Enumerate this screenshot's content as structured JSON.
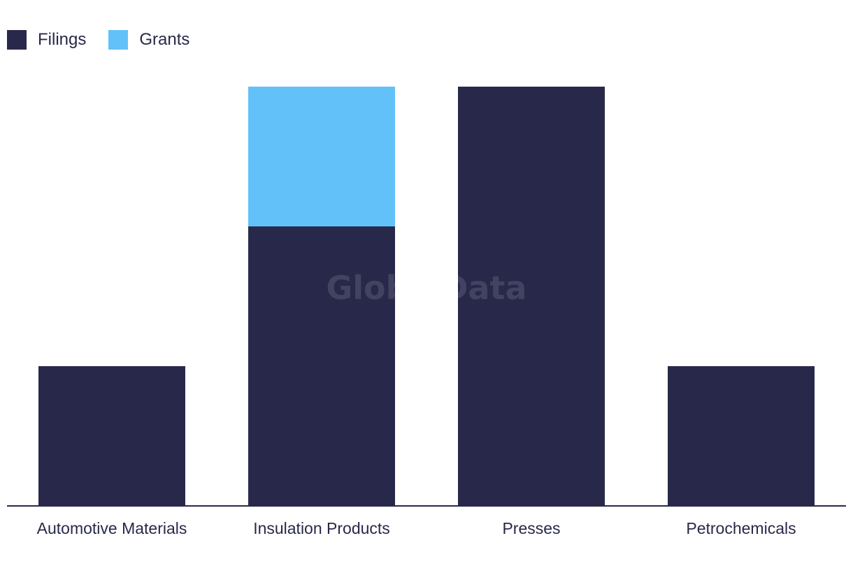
{
  "legend": {
    "items": [
      {
        "label": "Filings",
        "color": "#28294a"
      },
      {
        "label": "Grants",
        "color": "#62c1f8"
      }
    ]
  },
  "watermark": "GlobalData",
  "chart_data": {
    "type": "bar",
    "stacked": true,
    "categories": [
      "Automotive Materials",
      "Insulation Products",
      "Presses",
      "Petrochemicals"
    ],
    "series": [
      {
        "name": "Filings",
        "color": "#28294a",
        "values": [
          1,
          2,
          3,
          1
        ]
      },
      {
        "name": "Grants",
        "color": "#62c1f8",
        "values": [
          0,
          1,
          0,
          0
        ]
      }
    ],
    "ylim": [
      0,
      3
    ],
    "legend_position": "top-left",
    "grid": false
  }
}
